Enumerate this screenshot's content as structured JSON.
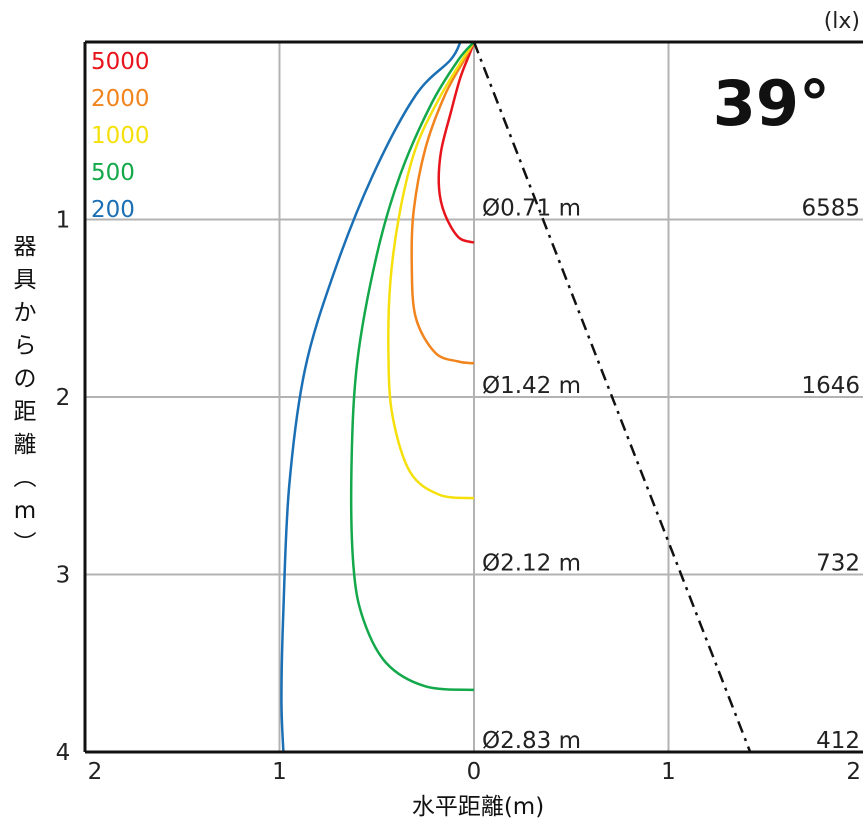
{
  "chart_data": {
    "type": "line",
    "title": "",
    "beam_angle_label": "39°",
    "xlabel": "水平距離(m)",
    "ylabel_chars": [
      "器",
      "具",
      "か",
      "ら",
      "の",
      "距",
      "離",
      "︵",
      "m",
      "︶"
    ],
    "lux_unit": "(lx)",
    "xlim": [
      -2,
      2
    ],
    "ylim": [
      0,
      4
    ],
    "x_tick_labels": [
      {
        "value": -2,
        "label": "2"
      },
      {
        "value": -1,
        "label": "1"
      },
      {
        "value": 0,
        "label": "0"
      },
      {
        "value": 1,
        "label": "1"
      },
      {
        "value": 2,
        "label": "2"
      }
    ],
    "y_tick_labels": [
      {
        "value": 1,
        "label": "1"
      },
      {
        "value": 2,
        "label": "2"
      },
      {
        "value": 3,
        "label": "3"
      },
      {
        "value": 4,
        "label": "4"
      }
    ],
    "grid": true,
    "legend": [
      {
        "label": "5000",
        "color": "#e8141c"
      },
      {
        "label": "2000",
        "color": "#f2841d"
      },
      {
        "label": "1000",
        "color": "#f5e00c"
      },
      {
        "label": "500",
        "color": "#13a84a"
      },
      {
        "label": "200",
        "color": "#1b6fb5"
      }
    ],
    "series": [
      {
        "name": "5000",
        "color": "#e8141c",
        "points": [
          [
            0,
            0
          ],
          [
            -0.02,
            0.06
          ],
          [
            -0.07,
            0.2
          ],
          [
            -0.12,
            0.4
          ],
          [
            -0.17,
            0.62
          ],
          [
            -0.18,
            0.82
          ],
          [
            -0.15,
            0.97
          ],
          [
            -0.08,
            1.1
          ],
          [
            0,
            1.13
          ]
        ]
      },
      {
        "name": "2000",
        "color": "#f2841d",
        "points": [
          [
            0,
            0
          ],
          [
            -0.05,
            0.1
          ],
          [
            -0.15,
            0.3
          ],
          [
            -0.25,
            0.6
          ],
          [
            -0.31,
            0.95
          ],
          [
            -0.32,
            1.25
          ],
          [
            -0.3,
            1.55
          ],
          [
            -0.2,
            1.75
          ],
          [
            -0.08,
            1.8
          ],
          [
            0,
            1.81
          ]
        ]
      },
      {
        "name": "1000",
        "color": "#f5e00c",
        "points": [
          [
            0,
            0
          ],
          [
            -0.06,
            0.1
          ],
          [
            -0.18,
            0.32
          ],
          [
            -0.3,
            0.6
          ],
          [
            -0.38,
            0.95
          ],
          [
            -0.43,
            1.35
          ],
          [
            -0.44,
            1.75
          ],
          [
            -0.42,
            2.1
          ],
          [
            -0.33,
            2.42
          ],
          [
            -0.18,
            2.55
          ],
          [
            0,
            2.57
          ]
        ]
      },
      {
        "name": "500",
        "color": "#13a84a",
        "points": [
          [
            0,
            0
          ],
          [
            -0.08,
            0.1
          ],
          [
            -0.22,
            0.35
          ],
          [
            -0.38,
            0.75
          ],
          [
            -0.5,
            1.2
          ],
          [
            -0.6,
            1.8
          ],
          [
            -0.63,
            2.4
          ],
          [
            -0.62,
            2.95
          ],
          [
            -0.57,
            3.25
          ],
          [
            -0.45,
            3.5
          ],
          [
            -0.25,
            3.63
          ],
          [
            0,
            3.65
          ]
        ]
      },
      {
        "name": "200",
        "color": "#1b6fb5",
        "points": [
          [
            -0.07,
            0
          ],
          [
            -0.12,
            0.1
          ],
          [
            -0.3,
            0.3
          ],
          [
            -0.52,
            0.75
          ],
          [
            -0.72,
            1.3
          ],
          [
            -0.87,
            1.85
          ],
          [
            -0.95,
            2.5
          ],
          [
            -0.98,
            3.2
          ],
          [
            -0.99,
            3.7
          ],
          [
            -0.98,
            4.0
          ]
        ]
      }
    ],
    "beam_edge_line": {
      "style": "dash-dot",
      "points": [
        [
          0,
          0
        ],
        [
          1.42,
          4.0
        ]
      ]
    },
    "rows": [
      {
        "distance": 1,
        "diameter": "Ø0.71 m",
        "lux": "6585"
      },
      {
        "distance": 2,
        "diameter": "Ø1.42 m",
        "lux": "1646"
      },
      {
        "distance": 3,
        "diameter": "Ø2.12 m",
        "lux": "732"
      },
      {
        "distance": 4,
        "diameter": "Ø2.83 m",
        "lux": "412"
      }
    ]
  }
}
